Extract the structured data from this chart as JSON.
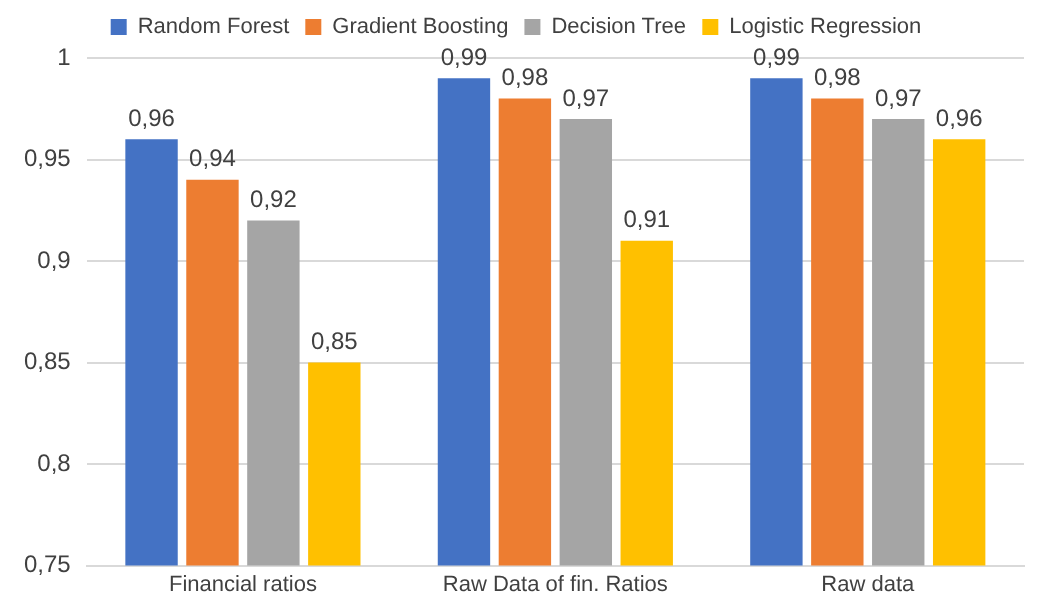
{
  "chart_data": {
    "type": "bar",
    "categories": [
      "Financial ratios",
      "Raw Data of fin. Ratios",
      "Raw data"
    ],
    "series": [
      {
        "name": "Random Forest",
        "color": "#4472c4",
        "values": [
          0.96,
          0.99,
          0.99
        ],
        "value_labels": [
          "0,96",
          "0,99",
          "0,99"
        ]
      },
      {
        "name": "Gradient Boosting",
        "color": "#ed7d31",
        "values": [
          0.94,
          0.98,
          0.98
        ],
        "value_labels": [
          "0,94",
          "0,98",
          "0,98"
        ]
      },
      {
        "name": "Decision Tree",
        "color": "#a5a5a5",
        "values": [
          0.92,
          0.97,
          0.97
        ],
        "value_labels": [
          "0,92",
          "0,97",
          "0,97"
        ]
      },
      {
        "name": "Logistic Regression",
        "color": "#ffc000",
        "values": [
          0.85,
          0.91,
          0.96
        ],
        "value_labels": [
          "0,85",
          "0,91",
          "0,96"
        ]
      }
    ],
    "ylim": [
      0.75,
      1
    ],
    "yticks": [
      {
        "value": 0.75,
        "label": "0,75"
      },
      {
        "value": 0.8,
        "label": "0,8"
      },
      {
        "value": 0.85,
        "label": "0,85"
      },
      {
        "value": 0.9,
        "label": "0,9"
      },
      {
        "value": 0.95,
        "label": "0,95"
      },
      {
        "value": 1,
        "label": "1"
      }
    ],
    "grid": "y",
    "legend": "top"
  }
}
